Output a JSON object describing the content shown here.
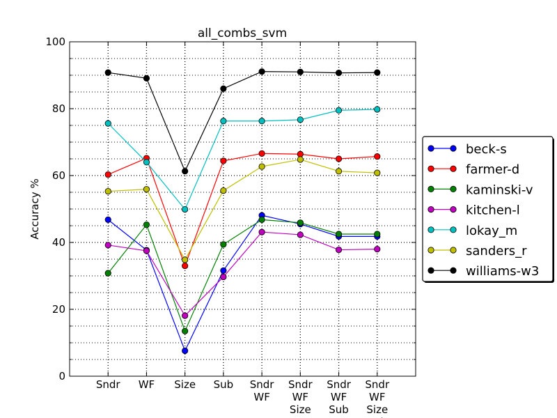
{
  "chart_data": {
    "type": "line",
    "title": "all_combs_svm",
    "xlabel": "",
    "ylabel": "Accuracy %",
    "ylim": [
      0,
      100
    ],
    "yticks": [
      0,
      20,
      40,
      60,
      80,
      100
    ],
    "grid": true,
    "legend_position": "right, outside plot",
    "categories": [
      [
        "Sndr"
      ],
      [
        "WF"
      ],
      [
        "Size"
      ],
      [
        "Sub"
      ],
      [
        "Sndr",
        "WF"
      ],
      [
        "Sndr",
        "WF",
        "Size"
      ],
      [
        "Sndr",
        "WF",
        "Sub"
      ],
      [
        "Sndr",
        "WF",
        "Size",
        "Sub"
      ]
    ],
    "series": [
      {
        "name": "beck-s",
        "color": "#0000ff",
        "values": [
          46.8,
          37.7,
          7.6,
          31.6,
          48.1,
          45.5,
          41.8,
          41.8
        ]
      },
      {
        "name": "farmer-d",
        "color": "#ff0000",
        "values": [
          60.3,
          65.2,
          33.0,
          64.4,
          66.6,
          66.4,
          65.0,
          65.7
        ]
      },
      {
        "name": "kaminski-v",
        "color": "#008000",
        "values": [
          30.8,
          45.3,
          13.5,
          39.4,
          46.8,
          45.9,
          42.5,
          42.5
        ]
      },
      {
        "name": "kitchen-l",
        "color": "#bf00bf",
        "values": [
          39.2,
          37.5,
          18.1,
          29.7,
          43.1,
          42.3,
          37.8,
          38.0
        ]
      },
      {
        "name": "lokay_m",
        "color": "#00bfbf",
        "values": [
          75.6,
          64.0,
          49.9,
          76.3,
          76.3,
          76.7,
          79.5,
          79.8
        ]
      },
      {
        "name": "sanders_r",
        "color": "#bfbf00",
        "values": [
          55.3,
          55.9,
          34.8,
          55.5,
          62.7,
          64.8,
          61.3,
          60.8
        ]
      },
      {
        "name": "williams-w3",
        "color": "#000000",
        "values": [
          90.8,
          89.1,
          61.3,
          86.0,
          91.1,
          91.0,
          90.7,
          90.8
        ]
      }
    ]
  }
}
